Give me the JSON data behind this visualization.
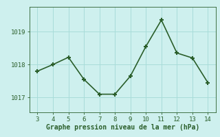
{
  "x": [
    3,
    4,
    5,
    6,
    7,
    8,
    9,
    10,
    11,
    12,
    13,
    14
  ],
  "y": [
    1017.8,
    1018.0,
    1018.22,
    1017.55,
    1017.1,
    1017.1,
    1017.65,
    1018.55,
    1019.35,
    1018.35,
    1018.2,
    1017.45
  ],
  "line_color": "#2a5e2a",
  "marker": "+",
  "marker_size": 5,
  "marker_linewidth": 1.5,
  "xlabel": "Graphe pression niveau de la mer (hPa)",
  "xlim": [
    2.5,
    14.5
  ],
  "ylim": [
    1016.55,
    1019.75
  ],
  "yticks": [
    1017,
    1018,
    1019
  ],
  "xticks": [
    3,
    4,
    5,
    6,
    7,
    8,
    9,
    10,
    11,
    12,
    13,
    14
  ],
  "bg_color": "#cef0ee",
  "grid_color": "#a8dcd9",
  "linewidth": 1.2,
  "tick_fontsize": 6.5,
  "xlabel_fontsize": 7.0
}
